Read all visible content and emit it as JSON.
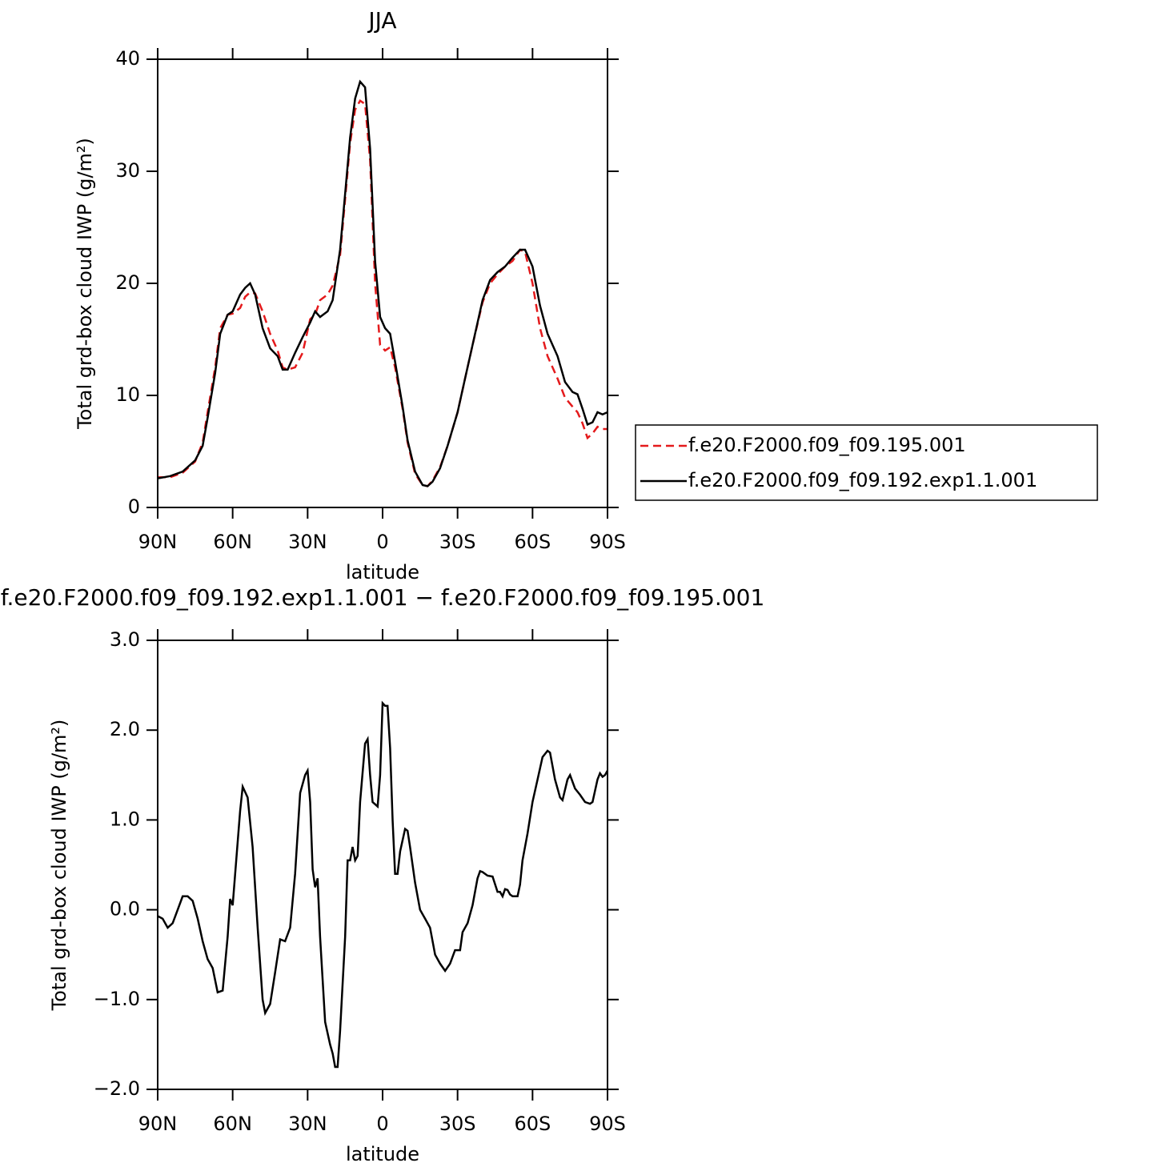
{
  "chart_data": [
    {
      "type": "line",
      "title": "JJA",
      "xlabel": "latitude",
      "ylabel": "Total grd-box cloud IWP (g/m²)",
      "xlim": [
        90,
        -90
      ],
      "xticks": [
        {
          "value": 90,
          "label": "90N"
        },
        {
          "value": 60,
          "label": "60N"
        },
        {
          "value": 30,
          "label": "30N"
        },
        0,
        {
          "value": -30,
          "label": "30S"
        },
        {
          "value": -60,
          "label": "60S"
        },
        {
          "value": -90,
          "label": "90S"
        }
      ],
      "ylim": [
        0,
        40
      ],
      "yticks": [
        0,
        10,
        20,
        30,
        40
      ],
      "legend": "outside right",
      "x": [
        90,
        85,
        80,
        75,
        72,
        70,
        67,
        65,
        62,
        60,
        57,
        55,
        53,
        51,
        48,
        45,
        42,
        40,
        38,
        35,
        32,
        29,
        27,
        25,
        22,
        20,
        17,
        15,
        13,
        11,
        9,
        7,
        5,
        3,
        1,
        -1,
        -3,
        -5,
        -8,
        -10,
        -13,
        -16,
        -18,
        -20,
        -23,
        -26,
        -30,
        -33,
        -36,
        -40,
        -43,
        -46,
        -49,
        -52,
        -55,
        -57,
        -60,
        -63,
        -66,
        -70,
        -73,
        -76,
        -78,
        -80,
        -82,
        -84,
        -86,
        -88,
        -90
      ],
      "series": [
        {
          "name": "f.e20.F2000.f09_f09.195.001",
          "color": "#e41a1c",
          "linestyle": "dashed",
          "values": [
            2.7,
            2.7,
            3.1,
            4.1,
            5.8,
            8.5,
            12.5,
            16,
            17.2,
            17.3,
            17.8,
            18.8,
            19.2,
            19.1,
            17.5,
            15.5,
            14,
            12.5,
            12.3,
            12.5,
            13.8,
            16.8,
            17.2,
            18.5,
            19,
            19.8,
            22.5,
            27.5,
            32.5,
            35.5,
            36.3,
            36,
            31,
            20,
            14.5,
            14,
            14.3,
            12.5,
            8.8,
            5.8,
            3,
            2,
            1.9,
            2.4,
            3.6,
            5.5,
            8.5,
            11.5,
            14.5,
            18.3,
            20,
            20.8,
            21.5,
            22,
            23,
            22.8,
            20,
            16,
            13.5,
            11.5,
            9.8,
            9,
            8.5,
            7.5,
            6.2,
            6.6,
            7.2,
            7,
            7
          ]
        },
        {
          "name": "f.e20.F2000.f09_f09.192.exp1.1.001",
          "color": "#000000",
          "linestyle": "solid",
          "values": [
            2.6,
            2.8,
            3.2,
            4.2,
            5.5,
            8,
            12,
            15.5,
            17.2,
            17.5,
            19,
            19.6,
            20,
            19,
            16,
            14.2,
            13.5,
            12.3,
            12.3,
            13.8,
            15.2,
            16.5,
            17.5,
            17,
            17.5,
            18.5,
            23,
            28,
            33,
            36.5,
            38,
            37.5,
            32,
            22,
            17,
            16,
            15.5,
            13,
            9,
            6,
            3.2,
            2,
            1.9,
            2.3,
            3.5,
            5.5,
            8.5,
            11.5,
            14.5,
            18.5,
            20.3,
            21,
            21.5,
            22.3,
            23,
            23,
            21.5,
            18,
            15.5,
            13.5,
            11.2,
            10.3,
            10.1,
            8.8,
            7.4,
            7.6,
            8.5,
            8.3,
            8.5
          ]
        }
      ]
    },
    {
      "type": "line",
      "title": "f.e20.F2000.f09_f09.192.exp1.1.001 − f.e20.F2000.f09_f09.195.001",
      "xlabel": "latitude",
      "ylabel": "Total grd-box cloud IWP (g/m²)",
      "xlim": [
        90,
        -90
      ],
      "xticks": [
        {
          "value": 90,
          "label": "90N"
        },
        {
          "value": 60,
          "label": "60N"
        },
        {
          "value": 30,
          "label": "30N"
        },
        0,
        {
          "value": -30,
          "label": "30S"
        },
        {
          "value": -60,
          "label": "60S"
        },
        {
          "value": -90,
          "label": "90S"
        }
      ],
      "ylim": [
        -2,
        3
      ],
      "yticks": [
        {
          "value": -2,
          "label": "−2.0"
        },
        {
          "value": -1,
          "label": "−1.0"
        },
        {
          "value": 0,
          "label": "0.0"
        },
        {
          "value": 1,
          "label": "1.0"
        },
        {
          "value": 2,
          "label": "2.0"
        },
        {
          "value": 3,
          "label": "3.0"
        }
      ],
      "x": [
        90,
        88,
        86,
        84,
        82,
        80,
        78,
        76,
        74,
        72,
        70,
        68,
        66,
        64,
        62,
        61,
        60,
        59,
        57,
        56,
        54,
        52,
        50,
        48,
        47,
        45,
        43,
        41,
        39,
        37,
        35,
        33,
        31,
        30,
        29,
        28,
        27,
        26,
        25,
        23,
        21,
        20,
        19,
        18,
        17,
        15,
        14,
        13,
        12,
        11,
        10,
        9,
        7,
        6,
        5,
        4,
        2,
        1,
        0,
        -1,
        -2,
        -3,
        -4,
        -5,
        -6,
        -7,
        -9,
        -10,
        -11,
        -13,
        -15,
        -17,
        -19,
        -21,
        -23,
        -25,
        -27,
        -29,
        -31,
        -32,
        -34,
        -36,
        -38,
        -39,
        -40,
        -42,
        -44,
        -46,
        -47,
        -48,
        -49,
        -50,
        -51,
        -52,
        -54,
        -55,
        -56,
        -58,
        -60,
        -62,
        -64,
        -66,
        -67,
        -69,
        -71,
        -72,
        -74,
        -75,
        -77,
        -79,
        -81,
        -83,
        -84,
        -86,
        -87,
        -88,
        -89,
        -90
      ],
      "series": [
        {
          "color": "#000000",
          "linestyle": "solid",
          "values": [
            -0.07,
            -0.1,
            -0.2,
            -0.15,
            0,
            0.15,
            0.15,
            0.1,
            -0.1,
            -0.35,
            -0.55,
            -0.65,
            -0.92,
            -0.9,
            -0.3,
            0.12,
            0.05,
            0.4,
            1.1,
            1.37,
            1.25,
            0.7,
            -0.2,
            -1.0,
            -1.15,
            -1.05,
            -0.7,
            -0.33,
            -0.35,
            -0.2,
            0.4,
            1.3,
            1.5,
            1.55,
            1.2,
            0.45,
            0.25,
            0.35,
            -0.3,
            -1.25,
            -1.5,
            -1.6,
            -1.75,
            -1.75,
            -1.35,
            -0.3,
            0.55,
            0.55,
            0.7,
            0.55,
            0.6,
            1.2,
            1.85,
            1.9,
            1.5,
            1.2,
            1.15,
            1.5,
            2.3,
            2.27,
            2.27,
            1.8,
            1.0,
            0.4,
            0.4,
            0.65,
            0.9,
            0.88,
            0.7,
            0.3,
            0,
            -0.1,
            -0.2,
            -0.5,
            -0.6,
            -0.68,
            -0.6,
            -0.45,
            -0.45,
            -0.25,
            -0.15,
            0.05,
            0.35,
            0.43,
            0.42,
            0.38,
            0.37,
            0.2,
            0.2,
            0.15,
            0.23,
            0.22,
            0.17,
            0.15,
            0.15,
            0.28,
            0.55,
            0.85,
            1.2,
            1.45,
            1.7,
            1.77,
            1.75,
            1.45,
            1.25,
            1.22,
            1.45,
            1.5,
            1.35,
            1.28,
            1.2,
            1.18,
            1.2,
            1.45,
            1.52,
            1.48,
            1.5,
            1.55
          ]
        }
      ]
    }
  ]
}
